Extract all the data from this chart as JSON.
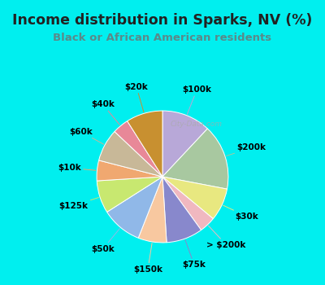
{
  "title": "Income distribution in Sparks, NV (%)",
  "subtitle": "Black or African American residents",
  "bg_outer": "#00EFEF",
  "bg_inner_grad_top": "#e8f5f0",
  "bg_inner_grad_bottom": "#d0e8d8",
  "labels": [
    "$100k",
    "$200k",
    "$30k",
    "> $200k",
    "$75k",
    "$150k",
    "$50k",
    "$125k",
    "$10k",
    "$60k",
    "$40k",
    "$20k"
  ],
  "values": [
    12,
    16,
    8,
    4,
    9,
    7,
    10,
    8,
    5,
    8,
    4,
    9
  ],
  "colors": [
    "#b8a8d8",
    "#a8c8a0",
    "#e8e880",
    "#f0b8c0",
    "#8888cc",
    "#f8c8a0",
    "#90b8e8",
    "#c8e870",
    "#f0a870",
    "#c8b898",
    "#e88898",
    "#c89030"
  ],
  "watermark": "City-Data.com",
  "label_fontsize": 7.5,
  "title_fontsize": 12.5,
  "subtitle_fontsize": 9.5,
  "title_color": "#222222",
  "subtitle_color": "#5a8a8a"
}
